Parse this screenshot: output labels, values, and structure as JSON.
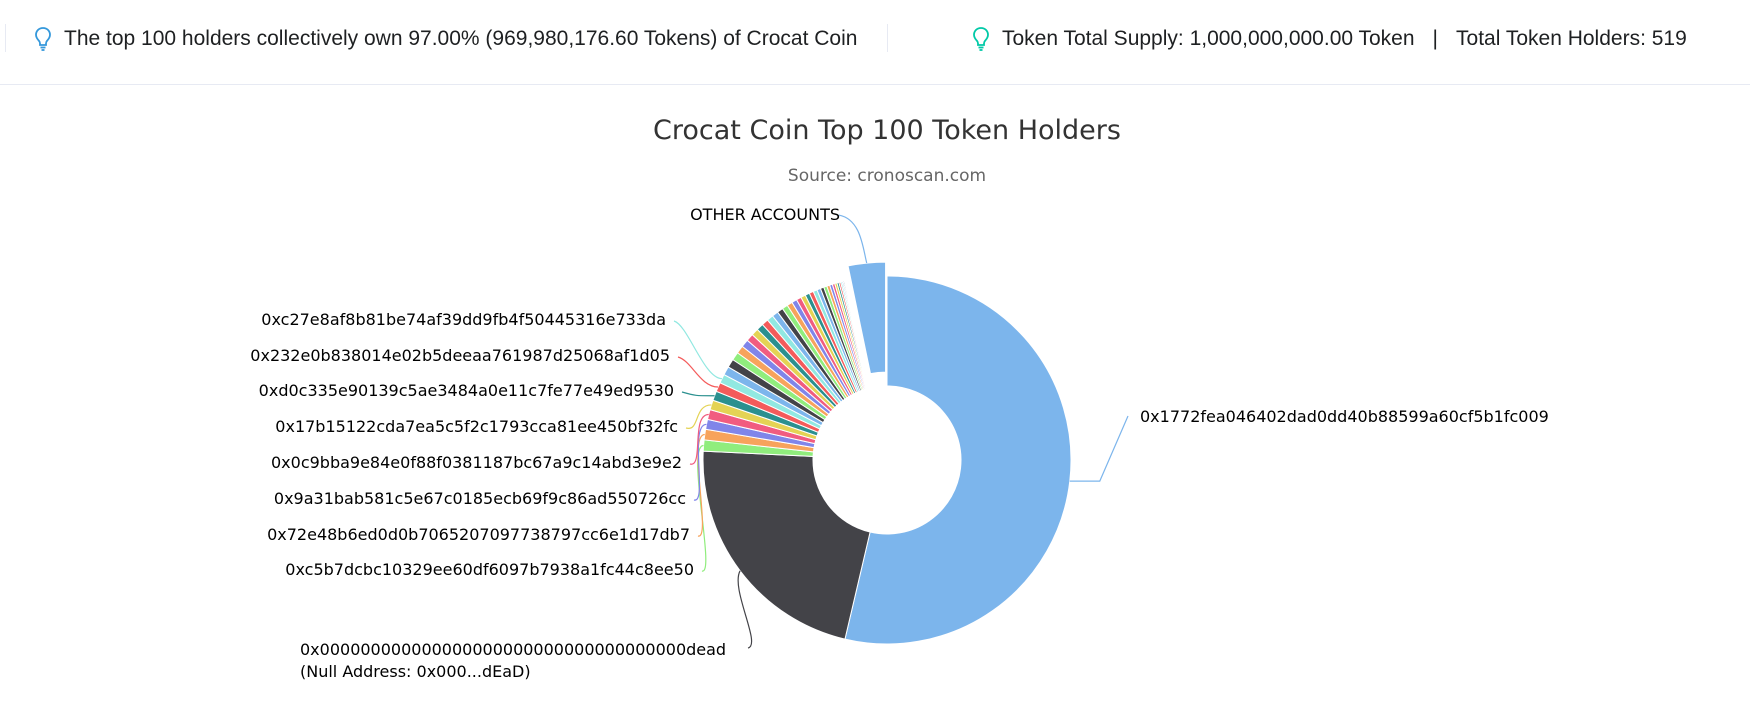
{
  "summary": {
    "top_holders_text": "The top 100 holders collectively own 97.00% (969,980,176.60 Tokens) of Crocat Coin",
    "total_supply_text": "Token Total Supply: 1,000,000,000.00 Token",
    "separator": "|",
    "total_holders_text": "Total Token Holders: 519",
    "icon": "lightbulb-icon",
    "icon_colors": [
      "#3498db",
      "#00c9a7"
    ]
  },
  "chart_data": {
    "type": "pie",
    "title": "Crocat Coin Top 100 Token Holders",
    "subtitle": "Source: cronoscan.com",
    "slices": [
      {
        "name": "0x1772fea046402dad0dd40b88599a60cf5b1fc009",
        "value": 49.3,
        "color": "#7cb5ec"
      },
      {
        "name": "0x000000000000000000000000000000000000dead",
        "sublabel": "(Null Address: 0x000...dEaD)",
        "value": 20.3,
        "color": "#434348"
      },
      {
        "name": "0xc5b7dcbc10329ee60df6097b7938a1fc44c8ee50",
        "value": 0.9,
        "color": "#90ed7d"
      },
      {
        "name": "0x72e48b6ed0d0b7065207097738797cc6e1d17db7",
        "value": 0.85,
        "color": "#f7a35c"
      },
      {
        "name": "0x9a31bab581c5e67c0185ecb69f9c86ad550726cc",
        "value": 0.8,
        "color": "#8085e9"
      },
      {
        "name": "0x0c9bba9e84e0f88f0381187bc67a9c14abd3e9e2",
        "value": 0.8,
        "color": "#f15c80"
      },
      {
        "name": "0x17b15122cda7ea5c5f2c1793cca81ee450bf32fc",
        "value": 0.78,
        "color": "#e4d354"
      },
      {
        "name": "0xd0c335e90139c5ae3484a0e11c7fe77e49ed9530",
        "value": 0.76,
        "color": "#2b908f"
      },
      {
        "name": "0x232e0b838014e02b5deeaa761987d25068af1d05",
        "value": 0.74,
        "color": "#f45b5b"
      },
      {
        "name": "0xc27e8af8b81be74af39dd9fb4f50445316e733da",
        "value": 0.72,
        "color": "#91e8e1"
      },
      {
        "name": "",
        "value": 0.7,
        "color": "#7cb5ec"
      },
      {
        "name": "",
        "value": 0.68,
        "color": "#434348"
      },
      {
        "name": "",
        "value": 0.66,
        "color": "#90ed7d"
      },
      {
        "name": "",
        "value": 0.64,
        "color": "#f7a35c"
      },
      {
        "name": "",
        "value": 0.62,
        "color": "#8085e9"
      },
      {
        "name": "",
        "value": 0.6,
        "color": "#f15c80"
      },
      {
        "name": "",
        "value": 0.58,
        "color": "#e4d354"
      },
      {
        "name": "",
        "value": 0.56,
        "color": "#2b908f"
      },
      {
        "name": "",
        "value": 0.54,
        "color": "#f45b5b"
      },
      {
        "name": "",
        "value": 0.52,
        "color": "#91e8e1"
      },
      {
        "name": "",
        "value": 0.5,
        "color": "#7cb5ec"
      },
      {
        "name": "",
        "value": 0.48,
        "color": "#434348"
      },
      {
        "name": "",
        "value": 0.46,
        "color": "#90ed7d"
      },
      {
        "name": "",
        "value": 0.44,
        "color": "#f7a35c"
      },
      {
        "name": "",
        "value": 0.42,
        "color": "#8085e9"
      },
      {
        "name": "",
        "value": 0.4,
        "color": "#f15c80"
      },
      {
        "name": "",
        "value": 0.38,
        "color": "#e4d354"
      },
      {
        "name": "",
        "value": 0.36,
        "color": "#2b908f"
      },
      {
        "name": "",
        "value": 0.34,
        "color": "#f45b5b"
      },
      {
        "name": "",
        "value": 0.32,
        "color": "#91e8e1"
      },
      {
        "name": "",
        "value": 0.3,
        "color": "#7cb5ec"
      },
      {
        "name": "",
        "value": 0.28,
        "color": "#434348"
      },
      {
        "name": "",
        "value": 0.26,
        "color": "#90ed7d"
      },
      {
        "name": "",
        "value": 0.24,
        "color": "#f7a35c"
      },
      {
        "name": "",
        "value": 0.22,
        "color": "#8085e9"
      },
      {
        "name": "",
        "value": 0.2,
        "color": "#f15c80"
      },
      {
        "name": "",
        "value": 0.18,
        "color": "#e4d354"
      },
      {
        "name": "",
        "value": 0.16,
        "color": "#2b908f"
      },
      {
        "name": "",
        "value": 0.14,
        "color": "#f45b5b"
      },
      {
        "name": "",
        "value": 0.12,
        "color": "#91e8e1"
      },
      {
        "name": "",
        "value": 0.1,
        "color": "#7cb5ec"
      },
      {
        "name": "",
        "value": 0.09,
        "color": "#434348"
      },
      {
        "name": "",
        "value": 0.08,
        "color": "#90ed7d"
      },
      {
        "name": "",
        "value": 0.07,
        "color": "#f7a35c"
      },
      {
        "name": "",
        "value": 0.06,
        "color": "#8085e9"
      },
      {
        "name": "",
        "value": 0.05,
        "color": "#f15c80"
      },
      {
        "name": "",
        "value": 0.05,
        "color": "#e4d354"
      },
      {
        "name": "",
        "value": 0.04,
        "color": "#2b908f"
      },
      {
        "name": "",
        "value": 0.04,
        "color": "#f45b5b"
      },
      {
        "name": "",
        "value": 0.03,
        "color": "#91e8e1"
      },
      {
        "name": "OTHER ACCOUNTS",
        "value": 3.0,
        "color": "#7cb5ec",
        "sliced": true
      }
    ]
  }
}
